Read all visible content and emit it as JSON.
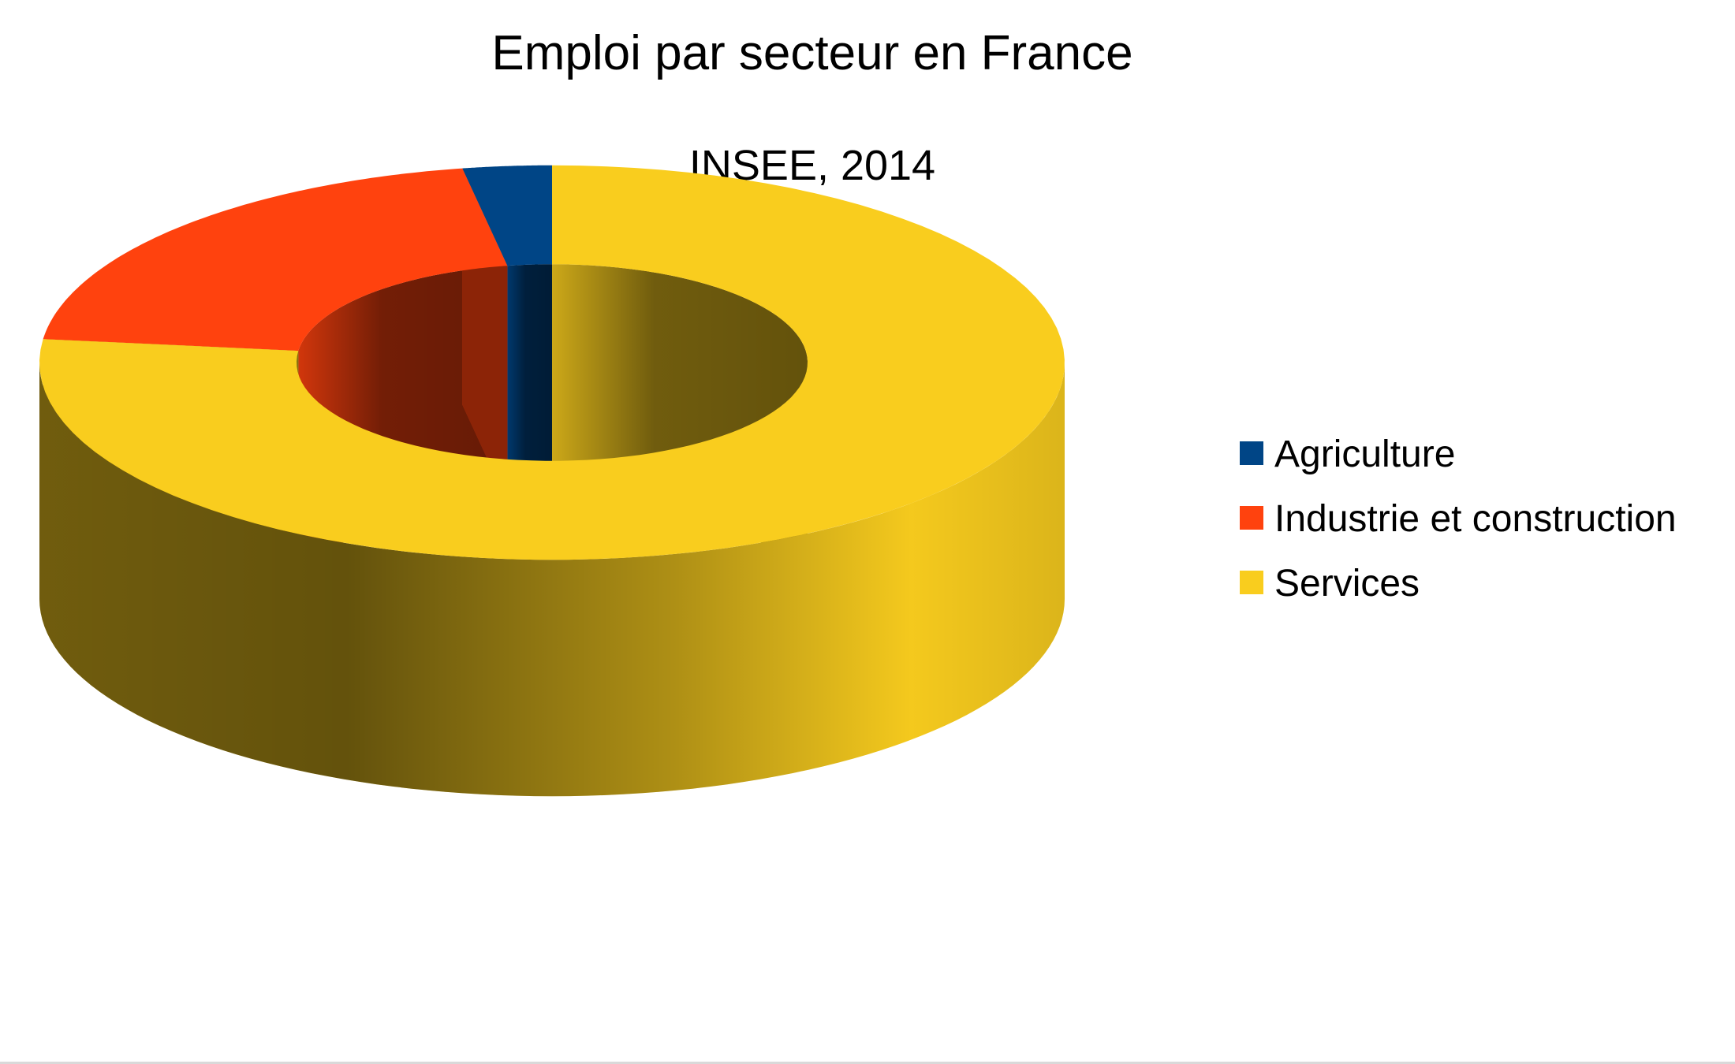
{
  "chart_data": {
    "type": "pie",
    "variant": "3d-donut",
    "title": "Emploi par secteur en France",
    "subtitle": "INSEE, 2014",
    "categories": [
      "Agriculture",
      "Industrie et construction",
      "Services"
    ],
    "values": [
      2.8,
      20.3,
      76.9
    ],
    "unit": "%",
    "colors": [
      "#004586",
      "#ff420e",
      "#f9cd1e"
    ],
    "legend_position": "right",
    "data_labels": false
  }
}
